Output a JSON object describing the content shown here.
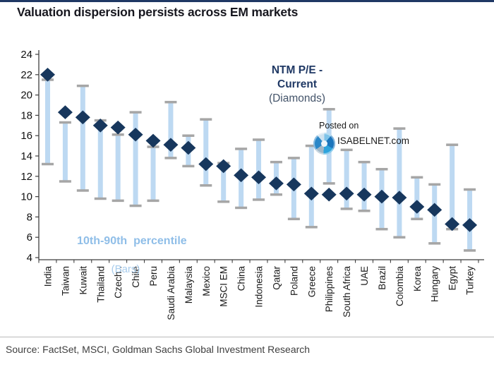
{
  "page": {
    "title": "Valuation dispersion persists across EM markets",
    "source": "Source: FactSet, MSCI, Goldman Sachs Global Investment Research"
  },
  "legend": {
    "diamonds_line1": "NTM P/E -",
    "diamonds_line2": "Current",
    "diamonds_line3": "(Diamonds)",
    "bars_line1": "10th-90th  percentile",
    "bars_line2": "(Bars)"
  },
  "watermark": {
    "posted_on": "Posted on",
    "site": "ISABELNET.com"
  },
  "colors": {
    "top_border": "#1F3864",
    "title_text": "#17171f",
    "diamond": "#17375D",
    "bar": "#BDD9F2",
    "cap": "#A6A6A6",
    "axis": "#3f3f3f",
    "tick_text": "#111111",
    "x_label_text": "#1a1a1a",
    "legend_navy": "#1F3864",
    "legend_diamonds_sub": "#44546A",
    "legend_light_blue": "#8FBEE8",
    "legend_light_blue_sub": "#A9CDED"
  },
  "chart_data": {
    "type": "bar",
    "subtype": "floating-range-bars-with-diamond-markers",
    "title": "Valuation dispersion persists across EM markets",
    "xlabel": "",
    "ylabel": "",
    "ylim": [
      4,
      24
    ],
    "ytick_step": 2,
    "grid": false,
    "categories": [
      "India",
      "Taiwan",
      "Kuwait",
      "Thailand",
      "Czech..",
      "Chile",
      "Peru",
      "Saudi Arabia",
      "Malaysia",
      "Mexico",
      "MSCI EM",
      "China",
      "Indonesia",
      "Qatar",
      "Poland",
      "Greece",
      "Philippines",
      "South Africa",
      "UAE",
      "Brazil",
      "Colombia",
      "Korea",
      "Hungary",
      "Egypt",
      "Turkey"
    ],
    "series": [
      {
        "name": "NTM P/E - Current (Diamonds)",
        "values": [
          22.0,
          18.3,
          17.8,
          17.0,
          16.8,
          16.1,
          15.5,
          15.1,
          14.8,
          13.2,
          13.0,
          12.1,
          11.9,
          11.3,
          11.2,
          10.3,
          10.2,
          10.3,
          10.2,
          10.0,
          9.9,
          9.0,
          8.7,
          7.3,
          7.2
        ]
      },
      {
        "name": "10th percentile (bar bottom)",
        "values": [
          13.2,
          11.5,
          10.6,
          9.8,
          9.6,
          9.1,
          9.6,
          13.8,
          13.0,
          11.1,
          9.5,
          8.9,
          9.7,
          10.2,
          7.8,
          7.0,
          11.3,
          8.8,
          8.6,
          6.8,
          6.0,
          7.8,
          5.4,
          6.8,
          4.7
        ]
      },
      {
        "name": "90th percentile (bar top)",
        "values": [
          21.5,
          17.3,
          20.9,
          17.5,
          16.1,
          18.3,
          14.9,
          19.3,
          16.0,
          17.6,
          13.3,
          14.7,
          15.6,
          13.4,
          13.8,
          15.0,
          18.6,
          14.6,
          13.4,
          12.7,
          16.7,
          11.9,
          11.2,
          15.1,
          10.7
        ]
      }
    ]
  }
}
